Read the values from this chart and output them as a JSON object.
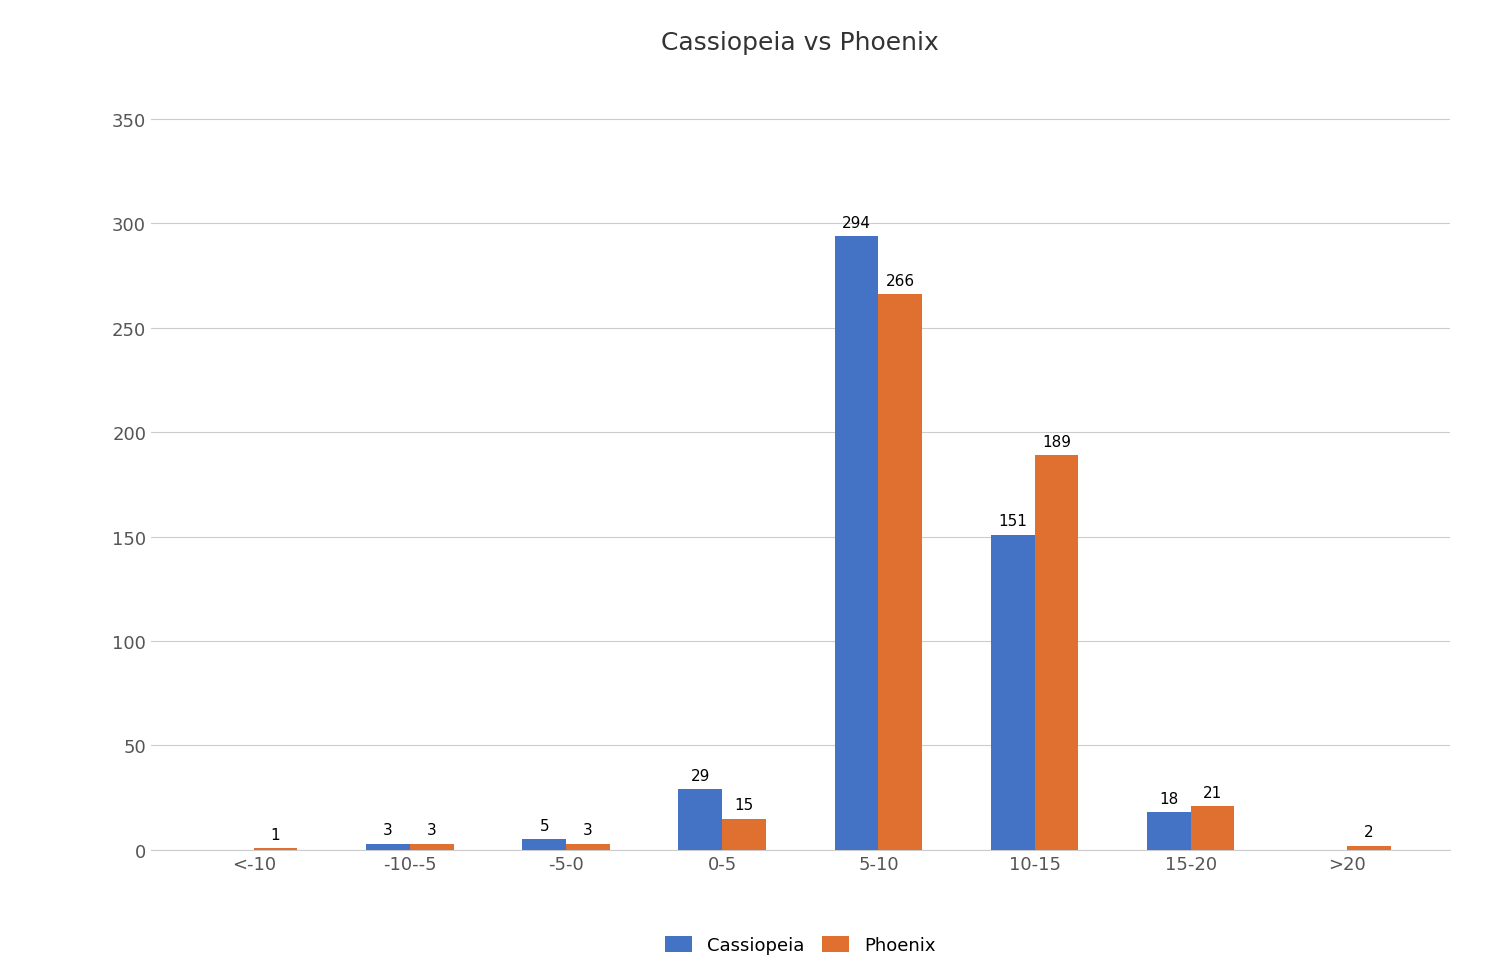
{
  "title": "Cassiopeia vs Phoenix",
  "categories": [
    "<-10",
    "-10--5",
    "-5-0",
    "0-5",
    "5-10",
    "10-15",
    "15-20",
    ">20"
  ],
  "cassiopeia": [
    0,
    3,
    5,
    29,
    294,
    151,
    18,
    0
  ],
  "phoenix": [
    1,
    3,
    3,
    15,
    266,
    189,
    21,
    2
  ],
  "bar_color_cassiopeia": "#4472C4",
  "bar_color_phoenix": "#E07030",
  "background_color": "#FFFFFF",
  "ylim": [
    0,
    370
  ],
  "yticks": [
    0,
    50,
    100,
    150,
    200,
    250,
    300,
    350
  ],
  "legend_labels": [
    "Cassiopeia",
    "Phoenix"
  ],
  "title_fontsize": 18,
  "tick_fontsize": 13,
  "label_fontsize": 11,
  "bar_width": 0.28,
  "grid_color": "#C0C0C0",
  "grid_alpha": 0.8
}
